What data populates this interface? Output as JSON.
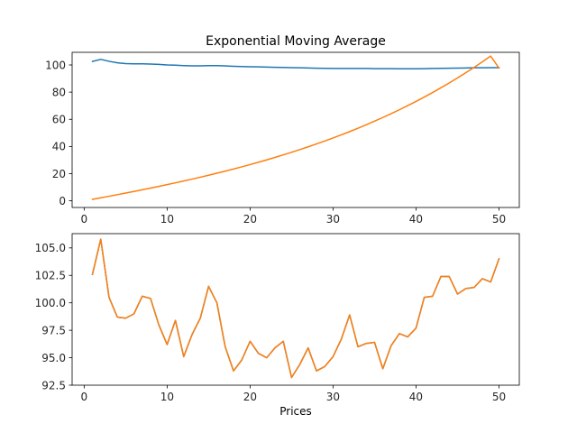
{
  "chart_data": [
    {
      "type": "line",
      "title": "Exponential Moving Average",
      "xlabel": "",
      "ylabel": "",
      "xlim": [
        -1.45,
        52.45
      ],
      "ylim": [
        -4.9,
        109.3
      ],
      "xticks": [
        0,
        10,
        20,
        30,
        40,
        50
      ],
      "yticks": [
        0,
        20,
        40,
        60,
        80,
        100
      ],
      "x": [
        1,
        2,
        3,
        4,
        5,
        6,
        7,
        8,
        9,
        10,
        11,
        12,
        13,
        14,
        15,
        16,
        17,
        18,
        19,
        20,
        21,
        22,
        23,
        24,
        25,
        26,
        27,
        28,
        29,
        30,
        31,
        32,
        33,
        34,
        35,
        36,
        37,
        38,
        39,
        40,
        41,
        42,
        43,
        44,
        45,
        46,
        47,
        48,
        49,
        50
      ],
      "series": [
        {
          "color": "#1f77b4",
          "values": [
            102.6,
            104.1,
            102.7,
            101.6,
            101.0,
            100.8,
            100.8,
            100.7,
            100.4,
            100.0,
            99.8,
            99.5,
            99.3,
            99.3,
            99.5,
            99.5,
            99.3,
            99.0,
            98.8,
            98.7,
            98.6,
            98.4,
            98.3,
            98.2,
            98.0,
            97.9,
            97.8,
            97.6,
            97.5,
            97.4,
            97.4,
            97.4,
            97.4,
            97.4,
            97.3,
            97.3,
            97.3,
            97.2,
            97.2,
            97.2,
            97.3,
            97.4,
            97.5,
            97.6,
            97.7,
            97.8,
            97.9,
            97.9,
            98.0,
            98.0
          ]
        },
        {
          "color": "#ff7f0e",
          "values": [
            1.05,
            2.21,
            3.36,
            4.53,
            5.7,
            6.9,
            8.12,
            9.36,
            10.62,
            11.92,
            13.23,
            14.58,
            15.96,
            17.38,
            18.82,
            20.31,
            21.84,
            23.41,
            25.02,
            26.67,
            28.38,
            30.13,
            31.94,
            33.8,
            35.72,
            37.7,
            39.74,
            41.84,
            44.01,
            46.25,
            48.56,
            50.95,
            53.42,
            55.97,
            58.6,
            61.33,
            64.14,
            67.05,
            70.06,
            73.18,
            76.4,
            79.73,
            83.18,
            86.74,
            90.43,
            94.25,
            98.2,
            102.29,
            106.53,
            97.7
          ]
        }
      ]
    },
    {
      "type": "line",
      "title": "",
      "xlabel": "Prices",
      "ylabel": "",
      "xlim": [
        -1.45,
        52.45
      ],
      "ylim": [
        92.5,
        106.3
      ],
      "xticks": [
        0,
        10,
        20,
        30,
        40,
        50
      ],
      "ytick_labels": [
        "92.5",
        "95.0",
        "97.5",
        "100.0",
        "102.5",
        "105.0"
      ],
      "x": [
        1,
        2,
        3,
        4,
        5,
        6,
        7,
        8,
        9,
        10,
        11,
        12,
        13,
        14,
        15,
        16,
        17,
        18,
        19,
        20,
        21,
        22,
        23,
        24,
        25,
        26,
        27,
        28,
        29,
        30,
        31,
        32,
        33,
        34,
        35,
        36,
        37,
        38,
        39,
        40,
        41,
        42,
        43,
        44,
        45,
        46,
        47,
        48,
        49,
        50
      ],
      "series": [
        {
          "color": "#1f77b4",
          "values": [
            102.6,
            105.8,
            100.5,
            98.7,
            98.6,
            99.0,
            100.6,
            100.4,
            98.0,
            96.2,
            98.4,
            95.1,
            97.1,
            98.6,
            101.5,
            100.0,
            96.0,
            93.8,
            94.8,
            96.5,
            95.4,
            95.0,
            95.9,
            96.5,
            93.2,
            94.4,
            95.9,
            93.8,
            94.2,
            95.1,
            96.7,
            98.9,
            96.0,
            96.3,
            96.4,
            94.0,
            96.1,
            97.2,
            96.9,
            97.7,
            100.5,
            100.6,
            102.4,
            102.4,
            100.8,
            101.3,
            101.4,
            102.2,
            101.9,
            104.0
          ]
        },
        {
          "color": "#ff7f0e",
          "values": [
            102.6,
            105.8,
            100.5,
            98.7,
            98.6,
            99.0,
            100.6,
            100.4,
            98.0,
            96.2,
            98.4,
            95.1,
            97.1,
            98.6,
            101.5,
            100.0,
            96.0,
            93.8,
            94.8,
            96.5,
            95.4,
            95.0,
            95.9,
            96.5,
            93.2,
            94.4,
            95.9,
            93.8,
            94.2,
            95.1,
            96.7,
            98.9,
            96.0,
            96.3,
            96.4,
            94.0,
            96.1,
            97.2,
            96.9,
            97.7,
            100.5,
            100.6,
            102.4,
            102.4,
            100.8,
            101.3,
            101.4,
            102.2,
            101.9,
            104.0
          ]
        }
      ]
    }
  ]
}
